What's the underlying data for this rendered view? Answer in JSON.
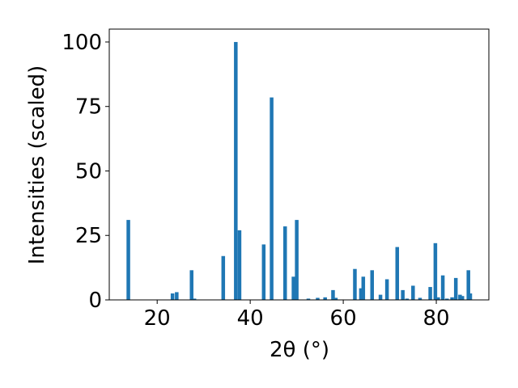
{
  "chart_data": {
    "type": "bar",
    "title": "",
    "xlabel": "2θ (°)",
    "ylabel": "Intensities (scaled)",
    "xlim": [
      9.7,
      91.3
    ],
    "ylim": [
      0,
      105
    ],
    "x_ticks": [
      20,
      40,
      60,
      80
    ],
    "y_ticks": [
      0,
      25,
      50,
      75,
      100
    ],
    "grid": false,
    "legend": "none",
    "bar_color": "#1f77b4",
    "series": [
      {
        "x": [
          13.8,
          23.3,
          24.2,
          27.4,
          28.0,
          34.2,
          36.9,
          37.7,
          42.9,
          44.6,
          47.5,
          49.3,
          50.0,
          52.5,
          54.5,
          56.1,
          57.8,
          58.4,
          62.5,
          63.8,
          64.3,
          66.2,
          68.0,
          69.4,
          71.6,
          72.8,
          73.7,
          75.0,
          76.5,
          78.7,
          79.8,
          80.4,
          81.4,
          82.3,
          83.4,
          84.2,
          85.1,
          85.6,
          86.9,
          87.3
        ],
        "values": [
          31,
          2.5,
          3,
          11.5,
          0.5,
          17,
          100,
          27,
          21.5,
          78.5,
          28.5,
          9,
          31,
          0.5,
          0.8,
          1,
          3.8,
          0.8,
          12,
          4.5,
          9,
          11.5,
          2,
          8,
          20.5,
          3.8,
          0.5,
          5.5,
          0.8,
          5,
          22,
          1,
          9.5,
          0.5,
          1,
          8.5,
          2,
          1.5,
          11.5,
          2.5
        ]
      }
    ]
  }
}
